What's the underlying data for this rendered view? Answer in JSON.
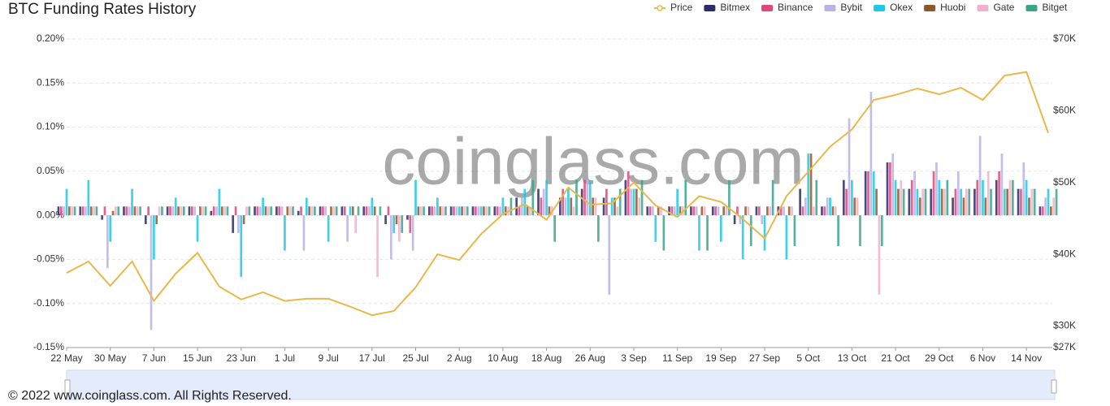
{
  "chart_data": {
    "type": "bar",
    "title": "BTC Funding Rates History",
    "watermark": "coinglass.com",
    "copyright": "© 2022 www.coinglass.com. All Rights Reserved.",
    "categories": [
      "22 May",
      null,
      "30 May",
      null,
      "7 Jun",
      null,
      "15 Jun",
      null,
      "23 Jun",
      null,
      "1 Jul",
      null,
      "9 Jul",
      null,
      "17 Jul",
      null,
      "25 Jul",
      null,
      "2 Aug",
      null,
      "10 Aug",
      null,
      "18 Aug",
      null,
      "26 Aug",
      null,
      "3 Sep",
      null,
      "11 Sep",
      null,
      "19 Sep",
      null,
      "27 Sep",
      null,
      "5 Oct",
      null,
      "13 Oct",
      null,
      "21 Oct",
      null,
      "29 Oct",
      null,
      "6 Nov",
      null,
      "14 Nov",
      null
    ],
    "ylim": [
      -0.15,
      0.2
    ],
    "yticks": [
      {
        "value": -0.15,
        "label": "-0.15%"
      },
      {
        "value": -0.1,
        "label": "-0.10%"
      },
      {
        "value": -0.05,
        "label": "-0.05%"
      },
      {
        "value": 0,
        "label": "0.00%"
      },
      {
        "value": 0.05,
        "label": "0.05%"
      },
      {
        "value": 0.1,
        "label": "0.10%"
      },
      {
        "value": 0.15,
        "label": "0.15%"
      },
      {
        "value": 0.2,
        "label": "0.20%"
      }
    ],
    "y2lim": [
      27000,
      70000
    ],
    "y2ticks": [
      {
        "value": 27000,
        "label": "$27K"
      },
      {
        "value": 30000,
        "label": "$30K"
      },
      {
        "value": 40000,
        "label": "$40K"
      },
      {
        "value": 50000,
        "label": "$50K"
      },
      {
        "value": 60000,
        "label": "$60K"
      },
      {
        "value": 70000,
        "label": "$70K"
      }
    ],
    "grid": true,
    "legend": "top-right",
    "series": [
      {
        "name": "Price",
        "color": "#e8b84a",
        "type": "line",
        "axis": "y2",
        "values": [
          37400,
          39000,
          35600,
          39000,
          33500,
          37300,
          40200,
          35500,
          33700,
          34700,
          33500,
          33800,
          33800,
          32700,
          31500,
          32100,
          35400,
          40000,
          39200,
          42800,
          45600,
          47000,
          44800,
          49300,
          46900,
          47100,
          50000,
          46800,
          45200,
          48100,
          47300,
          44900,
          42200,
          48100,
          51500,
          55000,
          57400,
          61500,
          62200,
          63100,
          62300,
          63200,
          61500,
          64900,
          65400,
          56900
        ]
      },
      {
        "name": "Bitmex",
        "color": "#2b2b6b",
        "values": [
          0.01,
          0.01,
          -0.005,
          0.01,
          -0.01,
          0.01,
          0.01,
          0.005,
          -0.02,
          0.01,
          0.01,
          0.005,
          0.01,
          0.01,
          0.01,
          -0.01,
          -0.005,
          0.01,
          0.01,
          0.01,
          0.01,
          0.02,
          0.03,
          0.02,
          0.03,
          0.02,
          0.04,
          0.01,
          0.01,
          0.01,
          0.01,
          -0.01,
          0.01,
          0.01,
          0.03,
          0.01,
          0.04,
          0.05,
          0.06,
          0.03,
          0.03,
          0.02,
          0.03,
          0.04,
          0.03,
          0.01
        ]
      },
      {
        "name": "Binance",
        "color": "#e0457b",
        "values": [
          0.01,
          0.01,
          0.01,
          0.01,
          0.01,
          0.01,
          0.01,
          0.01,
          0.01,
          0.01,
          0.01,
          0.01,
          0.01,
          0.01,
          0.01,
          0.01,
          -0.02,
          0.01,
          0.01,
          0.01,
          0.01,
          0.01,
          0.02,
          0.03,
          0.04,
          0.03,
          0.05,
          0.01,
          0.01,
          0.01,
          0.01,
          0.01,
          0.01,
          0.01,
          0.01,
          0.01,
          0.03,
          0.05,
          0.06,
          0.04,
          0.05,
          0.03,
          0.04,
          0.05,
          0.03,
          0.01
        ]
      },
      {
        "name": "Bybit",
        "color": "#b9b2e6",
        "values": [
          0.01,
          0.01,
          -0.06,
          0.01,
          -0.13,
          0.01,
          0.01,
          0.01,
          -0.02,
          0.01,
          0.01,
          -0.04,
          0.01,
          -0.03,
          0.01,
          -0.05,
          -0.04,
          0.01,
          0.01,
          0.01,
          0.01,
          0.02,
          0.03,
          0.02,
          0.04,
          -0.09,
          0.03,
          0.01,
          0.01,
          0.01,
          0.01,
          -0.01,
          -0.01,
          0.01,
          0.02,
          0.02,
          0.11,
          0.14,
          0.07,
          0.05,
          0.06,
          0.05,
          0.09,
          0.07,
          0.06,
          0.02
        ]
      },
      {
        "name": "Okex",
        "color": "#1ec8e6",
        "values": [
          0.03,
          0.04,
          -0.03,
          0.03,
          -0.05,
          0.02,
          -0.03,
          0.03,
          -0.07,
          0.02,
          -0.04,
          0.02,
          -0.03,
          0.01,
          0.02,
          -0.02,
          0.04,
          0.02,
          0.01,
          0.01,
          0.02,
          0.03,
          0.04,
          0.03,
          0.04,
          0.02,
          0.03,
          -0.03,
          0.03,
          -0.04,
          -0.03,
          -0.05,
          -0.04,
          -0.05,
          0.07,
          0.02,
          0.04,
          0.05,
          0.04,
          0.03,
          0.04,
          0.03,
          0.04,
          0.03,
          0.04,
          0.03
        ]
      },
      {
        "name": "Huobi",
        "color": "#8b5a2b",
        "values": [
          0.01,
          0.01,
          0.005,
          0.01,
          -0.01,
          0.01,
          0.01,
          0.01,
          -0.01,
          0.01,
          0.01,
          0.01,
          0.01,
          0.01,
          0.01,
          -0.01,
          0.01,
          0.01,
          0.01,
          0.01,
          0.01,
          0.01,
          0.01,
          0.02,
          0.02,
          0.02,
          0.03,
          0.01,
          0.01,
          0.01,
          0.01,
          0.01,
          0.01,
          0.01,
          0.07,
          0.01,
          0.02,
          0.03,
          0.03,
          0.02,
          0.03,
          0.02,
          0.02,
          0.03,
          0.02,
          0.01
        ]
      },
      {
        "name": "Gate",
        "color": "#f0b0cc",
        "values": [
          0.01,
          0.01,
          0.01,
          0.01,
          0.01,
          0.01,
          0.01,
          0.01,
          0.01,
          0.01,
          0.01,
          0.01,
          0.01,
          -0.02,
          -0.07,
          -0.03,
          0.01,
          0.01,
          0.01,
          0.01,
          0.01,
          0.01,
          0.01,
          0.01,
          0.02,
          0.01,
          0.02,
          0.01,
          0.01,
          0.01,
          0.01,
          0.01,
          0.01,
          0.01,
          0.01,
          0.01,
          0.02,
          -0.09,
          0.04,
          0.03,
          0.03,
          0.03,
          0.05,
          0.04,
          0.03,
          0.02
        ]
      },
      {
        "name": "Bitget",
        "color": "#3aa58a",
        "values": [
          0.01,
          0.01,
          0.01,
          0.01,
          0.01,
          0.01,
          0.01,
          0.01,
          0.01,
          0.01,
          0.01,
          0.01,
          0.01,
          0.01,
          0.01,
          -0.02,
          0.01,
          0.01,
          0.01,
          0.01,
          0.02,
          0.04,
          -0.03,
          0.04,
          -0.03,
          0.03,
          0.04,
          -0.04,
          0.04,
          -0.04,
          0.04,
          -0.035,
          0.04,
          -0.035,
          0.04,
          -0.035,
          -0.035,
          -0.035,
          0.03,
          0.03,
          0.04,
          0.03,
          0.03,
          0.04,
          0.03,
          0.03
        ]
      }
    ]
  }
}
